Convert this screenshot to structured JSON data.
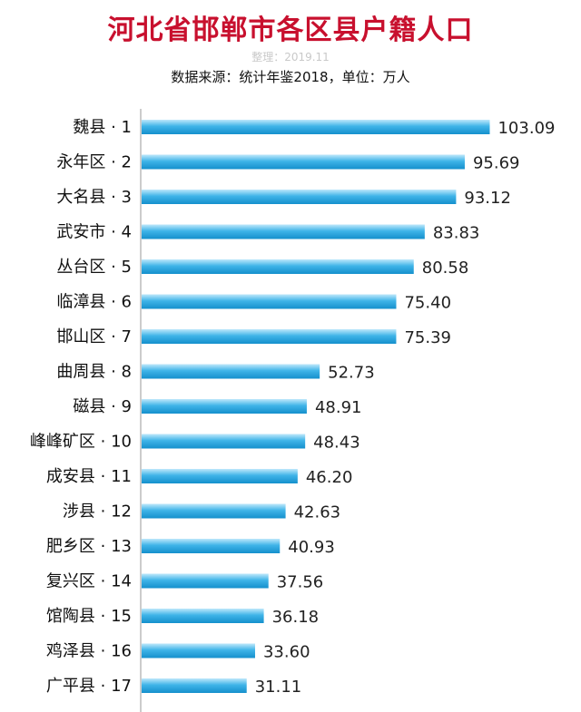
{
  "header": {
    "title": "河北省邯郸市各区县户籍人口",
    "subtitle": "整理：2019.11",
    "source": "数据来源：统计年鉴2018，单位：万人"
  },
  "chart_data": {
    "type": "bar",
    "orientation": "horizontal",
    "title": "河北省邯郸市各区县户籍人口",
    "xlabel": "",
    "ylabel": "",
    "unit": "万人",
    "xlim": [
      0,
      110
    ],
    "categories": [
      "魏县 · 1",
      "永年区 · 2",
      "大名县 · 3",
      "武安市 · 4",
      "丛台区 · 5",
      "临漳县 · 6",
      "邯山区 · 7",
      "曲周县 · 8",
      "磁县 · 9",
      "峰峰矿区 · 10",
      "成安县 · 11",
      "涉县 · 12",
      "肥乡区 · 13",
      "复兴区 · 14",
      "馆陶县 · 15",
      "鸡泽县 · 16",
      "广平县 · 17"
    ],
    "values": [
      103.09,
      95.69,
      93.12,
      83.83,
      80.58,
      75.4,
      75.39,
      52.73,
      48.91,
      48.43,
      46.2,
      42.63,
      40.93,
      37.56,
      36.18,
      33.6,
      31.11
    ],
    "value_labels": [
      "103.09",
      "95.69",
      "93.12",
      "83.83",
      "80.58",
      "75.40",
      "75.39",
      "52.73",
      "48.91",
      "48.43",
      "46.20",
      "42.63",
      "40.93",
      "37.56",
      "36.18",
      "33.60",
      "31.11"
    ],
    "bar_color": "#2aa6df",
    "grid": false,
    "legend": "none"
  }
}
